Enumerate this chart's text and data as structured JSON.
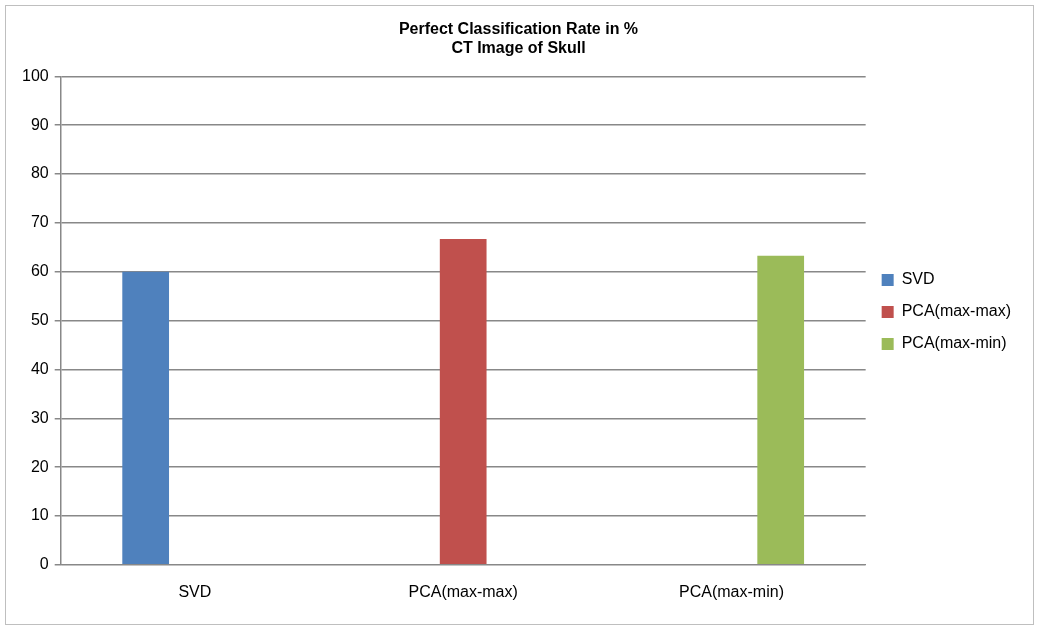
{
  "chart_data": {
    "type": "bar",
    "title": "Perfect Classification Rate in %\nCT Image of Skull",
    "categories": [
      "SVD",
      "PCA(max-max)",
      "PCA(max-min)"
    ],
    "series": [
      {
        "name": "SVD",
        "color": "#4f81bd",
        "values": [
          60,
          null,
          null
        ]
      },
      {
        "name": "PCA(max-max)",
        "color": "#c0504d",
        "values": [
          null,
          66.7,
          null
        ]
      },
      {
        "name": "PCA(max-min)",
        "color": "#9bbb59",
        "values": [
          null,
          null,
          63.3
        ]
      }
    ],
    "ylim": [
      0,
      100
    ],
    "yticks": [
      0,
      10,
      20,
      30,
      40,
      50,
      60,
      70,
      80,
      90,
      100
    ],
    "grid": "y",
    "legend": "right"
  }
}
